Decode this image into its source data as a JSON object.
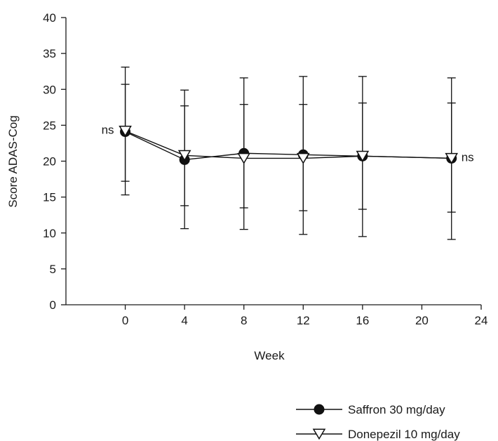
{
  "chart_data": {
    "type": "line",
    "xlabel": "Week",
    "ylabel": "Score ADAS-Cog",
    "xlim": [
      -4,
      24
    ],
    "ylim": [
      0,
      40
    ],
    "x_ticks": [
      0,
      4,
      8,
      12,
      16,
      20,
      24
    ],
    "y_ticks": [
      0,
      5,
      10,
      15,
      20,
      25,
      30,
      35,
      40
    ],
    "grid": false,
    "legend_position": "bottom-right",
    "series": [
      {
        "name": "Saffron 30 mg/day",
        "marker": "circle-filled",
        "color": "#111111",
        "x": [
          0,
          4,
          8,
          12,
          16,
          22
        ],
        "y": [
          24.1,
          20.2,
          21.1,
          20.9,
          20.7,
          20.4
        ],
        "err_low": [
          17.2,
          13.8,
          13.5,
          13.1,
          13.3,
          12.9
        ],
        "err_high": [
          30.7,
          27.7,
          27.9,
          27.9,
          28.1,
          28.1
        ]
      },
      {
        "name": "Donepezil 10 mg/day",
        "marker": "triangle-down-open",
        "color": "#111111",
        "x": [
          0,
          4,
          8,
          12,
          16,
          22
        ],
        "y": [
          24.2,
          20.8,
          20.4,
          20.4,
          20.7,
          20.4
        ],
        "err_low": [
          15.3,
          10.6,
          10.5,
          9.8,
          9.5,
          9.1
        ],
        "err_high": [
          33.1,
          29.9,
          31.6,
          31.8,
          31.8,
          31.6
        ]
      }
    ],
    "annotations": [
      {
        "text": "ns",
        "x": 0,
        "y": 24.2,
        "side": "left"
      },
      {
        "text": "ns",
        "x": 22,
        "y": 20.4,
        "side": "right"
      }
    ]
  }
}
